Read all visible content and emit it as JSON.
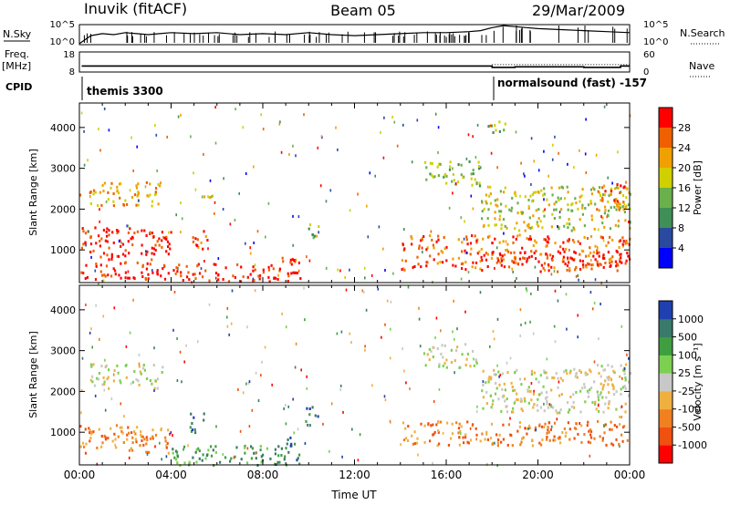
{
  "header": {
    "station": "Inuvik (fitACF)",
    "beam": "Beam 05",
    "date": "29/Mar/2009"
  },
  "left_labels": {
    "nsky": "N.Sky",
    "freq_line1": "Freq.",
    "freq_line2": "[MHz]",
    "cpid": "CPID"
  },
  "right_labels": {
    "nsearch": "N.Search",
    "nave": "Nave"
  },
  "colors": {
    "power_scale": [
      "#0000ff",
      "#2a4aa0",
      "#3f8f56",
      "#6ab04c",
      "#d0d000",
      "#f0a000",
      "#f06000",
      "#ff0000"
    ],
    "velocity_scale": [
      "#2040b0",
      "#3a7a6a",
      "#3f9f40",
      "#7cd050",
      "#c8c8c8",
      "#f0b040",
      "#f08020",
      "#f05010",
      "#ff0000"
    ]
  },
  "chart_data": [
    {
      "type": "line",
      "name": "N.Sky / N.Search",
      "ylabels_left": [
        "10^5",
        "10^0"
      ],
      "ylabels_right": [
        "10^5",
        "10^0"
      ],
      "x": [
        0,
        0.5,
        1,
        1.5,
        2,
        2.5,
        3,
        3.5,
        4,
        5,
        6,
        7,
        8,
        9,
        10,
        11,
        12,
        13,
        14,
        15,
        16,
        17,
        17.5,
        18,
        18.5,
        19,
        19.5,
        20,
        21,
        22,
        23,
        24
      ],
      "y_level": [
        0.05,
        0.45,
        0.55,
        0.5,
        0.6,
        0.55,
        0.5,
        0.55,
        0.6,
        0.55,
        0.6,
        0.5,
        0.55,
        0.5,
        0.6,
        0.5,
        0.45,
        0.5,
        0.55,
        0.6,
        0.6,
        0.65,
        0.7,
        0.85,
        0.95,
        0.9,
        0.85,
        0.8,
        0.75,
        0.7,
        0.65,
        0.6
      ]
    },
    {
      "type": "line",
      "name": "Freq / Nave",
      "ylabels_left": [
        "18",
        "8"
      ],
      "ylabels_right": [
        "60",
        "0"
      ],
      "segments": [
        {
          "x0": 0.1,
          "x1": 18.0,
          "freq": 11.0
        },
        {
          "x0": 18.0,
          "x1": 19.0,
          "freq": 10.3
        },
        {
          "x0": 19.0,
          "x1": 22.0,
          "freq": 10.6
        },
        {
          "x0": 22.0,
          "x1": 23.6,
          "freq": 10.3
        },
        {
          "x0": 23.6,
          "x1": 24.0,
          "freq": 11.0
        }
      ],
      "nave_dotted_from": 18.0,
      "nave_value": 22
    },
    {
      "type": "table",
      "name": "CPID",
      "entries": [
        {
          "start": 0.0,
          "label": "themis 3300"
        },
        {
          "start": 18.0,
          "label": "normalsound (fast) -157"
        }
      ]
    },
    {
      "type": "heatmap",
      "name": "power",
      "ylabel": "Slant Range [km]",
      "yticks": [
        1000,
        2000,
        3000,
        4000
      ],
      "ylim": [
        200,
        4600
      ],
      "xlim": [
        0,
        24
      ],
      "colorbar_label": "Power [dB]",
      "colorbar_ticks": [
        "4",
        "8",
        "12",
        "16",
        "20",
        "24",
        "28"
      ],
      "regions": [
        {
          "t0": 0.0,
          "t1": 4.0,
          "r0": 300,
          "r1": 1600,
          "level": 7
        },
        {
          "t0": 0.4,
          "t1": 3.6,
          "r0": 2100,
          "r1": 2700,
          "level": 5
        },
        {
          "t0": 4.0,
          "t1": 8.6,
          "r0": 220,
          "r1": 700,
          "level": 7
        },
        {
          "t0": 4.8,
          "t1": 5.6,
          "r0": 1000,
          "r1": 1500,
          "level": 6
        },
        {
          "t0": 5.2,
          "t1": 5.8,
          "r0": 2300,
          "r1": 2600,
          "level": 4
        },
        {
          "t0": 8.6,
          "t1": 9.6,
          "r0": 220,
          "r1": 900,
          "level": 7
        },
        {
          "t0": 9.8,
          "t1": 10.4,
          "r0": 1200,
          "r1": 1700,
          "level": 3
        },
        {
          "t0": 14.0,
          "t1": 24.0,
          "r0": 500,
          "r1": 1400,
          "level": 6
        },
        {
          "t0": 15.0,
          "t1": 17.5,
          "r0": 2600,
          "r1": 3200,
          "level": 3
        },
        {
          "t0": 17.5,
          "t1": 24.0,
          "r0": 1500,
          "r1": 2600,
          "level": 4
        },
        {
          "t0": 18.0,
          "t1": 24.0,
          "r0": 600,
          "r1": 1000,
          "level": 7
        },
        {
          "t0": 22.5,
          "t1": 23.8,
          "r0": 2000,
          "r1": 2700,
          "level": 6
        },
        {
          "t0": 17.8,
          "t1": 18.6,
          "r0": 3800,
          "r1": 4200,
          "level": 3
        }
      ]
    },
    {
      "type": "heatmap",
      "name": "velocity",
      "xlabel": "Time UT",
      "ylabel": "Slant Range [km]",
      "yticks": [
        1000,
        2000,
        3000,
        4000
      ],
      "xticks": [
        "00:00",
        "04:00",
        "08:00",
        "12:00",
        "16:00",
        "20:00",
        "00:00"
      ],
      "ylim": [
        200,
        4600
      ],
      "xlim": [
        0,
        24
      ],
      "colorbar_label": "Velocity [m s⁻¹]",
      "colorbar_ticks": [
        "1000",
        "500",
        "100",
        "25",
        "-25",
        "-100",
        "-500",
        "-1000"
      ],
      "regions": [
        {
          "t0": 0.0,
          "t1": 4.0,
          "r0": 500,
          "r1": 1200,
          "level": 6
        },
        {
          "t0": 0.4,
          "t1": 3.6,
          "r0": 2100,
          "r1": 2700,
          "level": 4
        },
        {
          "t0": 4.0,
          "t1": 8.6,
          "r0": 220,
          "r1": 700,
          "level": 2
        },
        {
          "t0": 4.8,
          "t1": 5.6,
          "r0": 1000,
          "r1": 1500,
          "level": 1
        },
        {
          "t0": 8.6,
          "t1": 9.6,
          "r0": 220,
          "r1": 900,
          "level": 1
        },
        {
          "t0": 9.8,
          "t1": 10.4,
          "r0": 1200,
          "r1": 1700,
          "level": 1
        },
        {
          "t0": 14.0,
          "t1": 24.0,
          "r0": 700,
          "r1": 1300,
          "level": 6
        },
        {
          "t0": 15.0,
          "t1": 17.5,
          "r0": 2600,
          "r1": 3200,
          "level": 4
        },
        {
          "t0": 17.5,
          "t1": 24.0,
          "r0": 1500,
          "r1": 2600,
          "level": 4
        },
        {
          "t0": 22.5,
          "t1": 23.8,
          "r0": 2000,
          "r1": 2700,
          "level": 4
        }
      ]
    }
  ]
}
